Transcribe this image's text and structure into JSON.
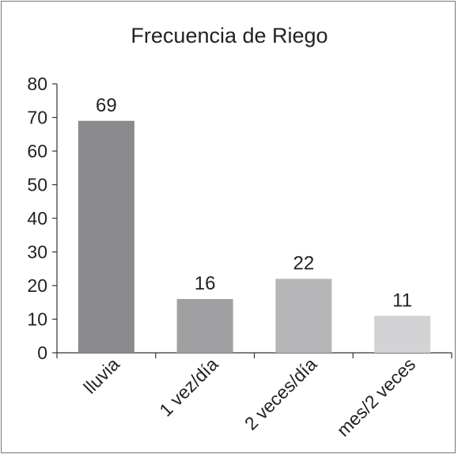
{
  "chart_data": {
    "type": "bar",
    "title": "Frecuencia de Riego",
    "xlabel": "",
    "ylabel": "",
    "categories": [
      "lluvia",
      "1 vez/día",
      "2 veces/día",
      "mes/2 veces"
    ],
    "values": [
      69,
      16,
      22,
      11
    ],
    "data_labels": [
      "69",
      "16",
      "22",
      "11"
    ],
    "ylim": [
      0,
      80
    ],
    "yticks": [
      "0",
      "10",
      "20",
      "30",
      "40",
      "50",
      "60",
      "70",
      "80"
    ],
    "grid": false,
    "legend": "none",
    "bar_colors": [
      "#8a8a8c",
      "#a0a0a3",
      "#b6b6b8",
      "#d3d3d5"
    ]
  }
}
